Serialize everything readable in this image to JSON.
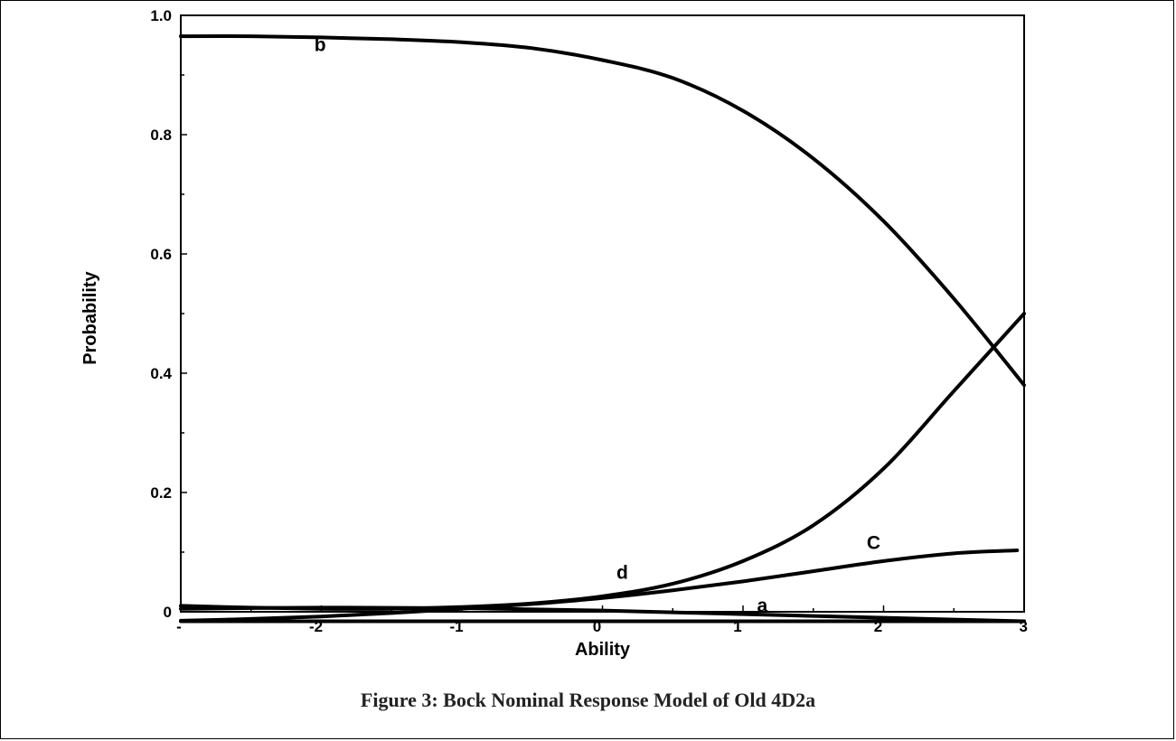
{
  "caption": "Figure 3:  Bock Nominal Response Model of Old 4D2a",
  "chart_data": {
    "type": "line",
    "xlabel": "Ability",
    "ylabel": "Probability",
    "xlim": [
      -3,
      3
    ],
    "ylim": [
      0,
      1.0
    ],
    "x_tick_labels": [
      {
        "value": -3,
        "label": "-"
      },
      {
        "value": -2,
        "label": "-2"
      },
      {
        "value": -1,
        "label": "-1"
      },
      {
        "value": 0,
        "label": "0"
      },
      {
        "value": 1,
        "label": "1"
      },
      {
        "value": 2,
        "label": "2"
      },
      {
        "value": 3,
        "label": "3"
      }
    ],
    "y_tick_labels": [
      {
        "value": 0,
        "label": "0"
      },
      {
        "value": 0.2,
        "label": "0.2"
      },
      {
        "value": 0.4,
        "label": "0.4"
      },
      {
        "value": 0.6,
        "label": "0.6"
      },
      {
        "value": 0.8,
        "label": "0.8"
      },
      {
        "value": 1.0,
        "label": "1.0"
      }
    ],
    "grid": false,
    "series": [
      {
        "name": "b",
        "x": [
          -3,
          -2.5,
          -2,
          -1.5,
          -1,
          -0.5,
          0,
          0.5,
          1,
          1.5,
          2,
          2.5,
          3
        ],
        "values": [
          0.965,
          0.965,
          0.963,
          0.96,
          0.955,
          0.945,
          0.925,
          0.895,
          0.84,
          0.76,
          0.655,
          0.525,
          0.38
        ],
        "label_at": [
          -2.05,
          0.94
        ]
      },
      {
        "name": "d",
        "x": [
          -3,
          -2.5,
          -2,
          -1.5,
          -1,
          -0.5,
          0,
          0.5,
          1,
          1.5,
          2,
          2.5,
          3
        ],
        "values": [
          0.01,
          0.007,
          0.005,
          0.005,
          0.008,
          0.014,
          0.026,
          0.047,
          0.085,
          0.145,
          0.24,
          0.37,
          0.5
        ],
        "label_at": [
          0.1,
          0.055
        ]
      },
      {
        "name": "C",
        "x": [
          -3,
          -2.5,
          -2,
          -1.5,
          -1,
          -0.5,
          0,
          0.5,
          1,
          1.5,
          2,
          2.5,
          2.95
        ],
        "values": [
          -0.015,
          -0.012,
          -0.008,
          -0.002,
          0.005,
          0.013,
          0.023,
          0.036,
          0.051,
          0.068,
          0.085,
          0.098,
          0.103
        ],
        "label_at": [
          1.88,
          0.105
        ]
      },
      {
        "name": "a",
        "x": [
          -3,
          -2,
          -1,
          0,
          1,
          2,
          3
        ],
        "values": [
          0.005,
          0.007,
          0.006,
          0.002,
          -0.004,
          -0.01,
          -0.016
        ],
        "label_at": [
          1.1,
          0.0
        ]
      },
      {
        "name": "",
        "x": [
          -3,
          -2,
          -1,
          0,
          1,
          2,
          3
        ],
        "values": [
          -0.016,
          -0.016,
          -0.016,
          -0.016,
          -0.016,
          -0.016,
          -0.016
        ]
      }
    ]
  }
}
